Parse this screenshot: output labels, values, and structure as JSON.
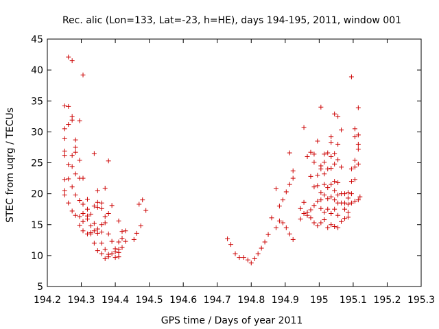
{
  "chart_data": {
    "type": "scatter",
    "title": "Rec. alic (Lon=133, Lat=-23, h=HE), days 194-195, 2011, window 001",
    "xlabel": "GPS time / Days of year 2011",
    "ylabel": "STEC from uqrg / TECUs",
    "xlim": [
      194.2,
      195.3
    ],
    "ylim": [
      5,
      45
    ],
    "grid": false,
    "legend": "none",
    "marker": "+",
    "color": "#cc0000",
    "x_ticks": [
      {
        "value": 194.2,
        "label": "194.2"
      },
      {
        "value": 194.3,
        "label": "194.3"
      },
      {
        "value": 194.4,
        "label": "194.4"
      },
      {
        "value": 194.5,
        "label": "194.5"
      },
      {
        "value": 194.6,
        "label": "194.6"
      },
      {
        "value": 194.7,
        "label": "194.7"
      },
      {
        "value": 194.8,
        "label": "194.8"
      },
      {
        "value": 194.9,
        "label": "194.9"
      },
      {
        "value": 195.0,
        "label": "195"
      },
      {
        "value": 195.1,
        "label": "195.1"
      },
      {
        "value": 195.2,
        "label": "195.2"
      },
      {
        "value": 195.3,
        "label": "195.3"
      }
    ],
    "y_ticks": [
      {
        "value": 5,
        "label": "5"
      },
      {
        "value": 10,
        "label": "10"
      },
      {
        "value": 15,
        "label": "15"
      },
      {
        "value": 20,
        "label": "20"
      },
      {
        "value": 25,
        "label": "25"
      },
      {
        "value": 30,
        "label": "30"
      },
      {
        "value": 35,
        "label": "35"
      },
      {
        "value": 40,
        "label": "40"
      },
      {
        "value": 45,
        "label": "45"
      }
    ],
    "points": [
      [
        194.251,
        34.2
      ],
      [
        194.251,
        30.5
      ],
      [
        194.251,
        28.9
      ],
      [
        194.251,
        26.9
      ],
      [
        194.251,
        26.2
      ],
      [
        194.251,
        22.3
      ],
      [
        194.251,
        20.5
      ],
      [
        194.251,
        19.8
      ],
      [
        194.262,
        42.1
      ],
      [
        194.262,
        34.1
      ],
      [
        194.262,
        31.2
      ],
      [
        194.262,
        24.7
      ],
      [
        194.262,
        22.4
      ],
      [
        194.262,
        18.5
      ],
      [
        194.273,
        41.5
      ],
      [
        194.273,
        32.5
      ],
      [
        194.273,
        31.9
      ],
      [
        194.273,
        26.2
      ],
      [
        194.273,
        24.4
      ],
      [
        194.273,
        21.1
      ],
      [
        194.273,
        17.2
      ],
      [
        194.283,
        28.7
      ],
      [
        194.283,
        27.5
      ],
      [
        194.283,
        26.7
      ],
      [
        194.283,
        23.2
      ],
      [
        194.283,
        19.8
      ],
      [
        194.283,
        16.5
      ],
      [
        194.295,
        31.8
      ],
      [
        194.295,
        25.4
      ],
      [
        194.295,
        22.5
      ],
      [
        194.295,
        18.9
      ],
      [
        194.295,
        16.3
      ],
      [
        194.295,
        14.9
      ],
      [
        194.305,
        39.2
      ],
      [
        194.305,
        22.5
      ],
      [
        194.305,
        18.3
      ],
      [
        194.305,
        16.8
      ],
      [
        194.305,
        15.5
      ],
      [
        194.305,
        14.0
      ],
      [
        194.318,
        19.1
      ],
      [
        194.318,
        17.5
      ],
      [
        194.318,
        16.4
      ],
      [
        194.318,
        15.9
      ],
      [
        194.318,
        13.5
      ],
      [
        194.328,
        16.7
      ],
      [
        194.328,
        14.8
      ],
      [
        194.328,
        13.7
      ],
      [
        194.328,
        13.5
      ],
      [
        194.338,
        26.5
      ],
      [
        194.338,
        18.0
      ],
      [
        194.338,
        15.2
      ],
      [
        194.338,
        14.0
      ],
      [
        194.338,
        12.0
      ],
      [
        194.348,
        20.5
      ],
      [
        194.348,
        18.6
      ],
      [
        194.348,
        17.8
      ],
      [
        194.348,
        14.3
      ],
      [
        194.348,
        13.6
      ],
      [
        194.348,
        10.8
      ],
      [
        194.36,
        18.5
      ],
      [
        194.36,
        17.6
      ],
      [
        194.36,
        15.0
      ],
      [
        194.36,
        13.8
      ],
      [
        194.36,
        12.0
      ],
      [
        194.36,
        10.3
      ],
      [
        194.37,
        20.9
      ],
      [
        194.37,
        16.3
      ],
      [
        194.37,
        15.3
      ],
      [
        194.37,
        11.0
      ],
      [
        194.37,
        9.5
      ],
      [
        194.38,
        25.3
      ],
      [
        194.38,
        16.8
      ],
      [
        194.38,
        13.5
      ],
      [
        194.38,
        10.2
      ],
      [
        194.38,
        9.8
      ],
      [
        194.39,
        18.1
      ],
      [
        194.39,
        12.3
      ],
      [
        194.39,
        10.3
      ],
      [
        194.4,
        11.1
      ],
      [
        194.4,
        10.6
      ],
      [
        194.4,
        9.7
      ],
      [
        194.41,
        15.6
      ],
      [
        194.41,
        12.2
      ],
      [
        194.41,
        11.0
      ],
      [
        194.41,
        10.5
      ],
      [
        194.41,
        9.8
      ],
      [
        194.42,
        13.9
      ],
      [
        194.42,
        12.8
      ],
      [
        194.42,
        11.3
      ],
      [
        194.43,
        14.0
      ],
      [
        194.43,
        12.3
      ],
      [
        194.455,
        12.6
      ],
      [
        194.463,
        13.6
      ],
      [
        194.47,
        18.3
      ],
      [
        194.475,
        14.8
      ],
      [
        194.48,
        19.0
      ],
      [
        194.49,
        17.3
      ],
      [
        194.73,
        12.7
      ],
      [
        194.74,
        11.8
      ],
      [
        194.753,
        10.3
      ],
      [
        194.765,
        9.7
      ],
      [
        194.778,
        9.7
      ],
      [
        194.79,
        9.3
      ],
      [
        194.8,
        8.8
      ],
      [
        194.81,
        9.5
      ],
      [
        194.82,
        10.3
      ],
      [
        194.83,
        11.2
      ],
      [
        194.84,
        12.2
      ],
      [
        194.85,
        13.4
      ],
      [
        194.86,
        16.1
      ],
      [
        194.873,
        14.5
      ],
      [
        194.873,
        20.8
      ],
      [
        194.883,
        15.6
      ],
      [
        194.883,
        18.0
      ],
      [
        194.893,
        15.3
      ],
      [
        194.893,
        19.0
      ],
      [
        194.903,
        14.5
      ],
      [
        194.903,
        20.3
      ],
      [
        194.913,
        13.5
      ],
      [
        194.913,
        21.5
      ],
      [
        194.913,
        26.6
      ],
      [
        194.923,
        12.6
      ],
      [
        194.923,
        22.5
      ],
      [
        194.923,
        23.7
      ],
      [
        194.945,
        15.9
      ],
      [
        194.945,
        17.6
      ],
      [
        194.955,
        16.8
      ],
      [
        194.955,
        18.6
      ],
      [
        194.955,
        30.7
      ],
      [
        194.965,
        16.5
      ],
      [
        194.965,
        17.0
      ],
      [
        194.965,
        26.0
      ],
      [
        194.975,
        16.1
      ],
      [
        194.975,
        17.4
      ],
      [
        194.975,
        22.8
      ],
      [
        194.975,
        26.7
      ],
      [
        194.985,
        15.3
      ],
      [
        194.985,
        18.1
      ],
      [
        194.985,
        21.1
      ],
      [
        194.985,
        25.1
      ],
      [
        194.985,
        26.4
      ],
      [
        194.995,
        14.8
      ],
      [
        194.995,
        18.8
      ],
      [
        194.995,
        21.3
      ],
      [
        194.995,
        23.0
      ],
      [
        194.995,
        28.5
      ],
      [
        195.005,
        15.3
      ],
      [
        195.005,
        17.6
      ],
      [
        195.005,
        19.0
      ],
      [
        195.005,
        20.2
      ],
      [
        195.005,
        24.0
      ],
      [
        195.005,
        24.5
      ],
      [
        195.005,
        34.0
      ],
      [
        195.015,
        15.8
      ],
      [
        195.015,
        17.0
      ],
      [
        195.015,
        19.8
      ],
      [
        195.015,
        21.5
      ],
      [
        195.015,
        23.2
      ],
      [
        195.015,
        25.1
      ],
      [
        195.015,
        26.4
      ],
      [
        195.025,
        14.5
      ],
      [
        195.025,
        17.5
      ],
      [
        195.025,
        19.2
      ],
      [
        195.025,
        21.0
      ],
      [
        195.025,
        24.0
      ],
      [
        195.025,
        26.6
      ],
      [
        195.035,
        15.0
      ],
      [
        195.035,
        16.8
      ],
      [
        195.035,
        19.5
      ],
      [
        195.035,
        21.5
      ],
      [
        195.035,
        24.1
      ],
      [
        195.035,
        26.0
      ],
      [
        195.035,
        28.3
      ],
      [
        195.035,
        29.2
      ],
      [
        195.045,
        14.7
      ],
      [
        195.045,
        17.5
      ],
      [
        195.045,
        19.0
      ],
      [
        195.045,
        20.5
      ],
      [
        195.045,
        22.0
      ],
      [
        195.045,
        24.8
      ],
      [
        195.045,
        26.5
      ],
      [
        195.045,
        32.9
      ],
      [
        195.055,
        14.5
      ],
      [
        195.055,
        16.5
      ],
      [
        195.055,
        18.5
      ],
      [
        195.055,
        19.8
      ],
      [
        195.055,
        21.8
      ],
      [
        195.055,
        25.5
      ],
      [
        195.055,
        28.0
      ],
      [
        195.055,
        32.5
      ],
      [
        195.065,
        15.5
      ],
      [
        195.065,
        18.5
      ],
      [
        195.065,
        20.0
      ],
      [
        195.065,
        24.3
      ],
      [
        195.065,
        30.3
      ],
      [
        195.075,
        16.0
      ],
      [
        195.075,
        17.5
      ],
      [
        195.075,
        18.5
      ],
      [
        195.075,
        20.0
      ],
      [
        195.085,
        16.2
      ],
      [
        195.085,
        17.0
      ],
      [
        195.085,
        18.3
      ],
      [
        195.085,
        19.3
      ],
      [
        195.085,
        20.2
      ],
      [
        195.095,
        18.5
      ],
      [
        195.095,
        20.0
      ],
      [
        195.095,
        22.0
      ],
      [
        195.095,
        24.0
      ],
      [
        195.095,
        38.9
      ],
      [
        195.105,
        18.8
      ],
      [
        195.105,
        22.3
      ],
      [
        195.105,
        24.3
      ],
      [
        195.105,
        25.4
      ],
      [
        195.105,
        29.2
      ],
      [
        195.105,
        30.5
      ],
      [
        195.115,
        19.0
      ],
      [
        195.115,
        24.8
      ],
      [
        195.115,
        27.2
      ],
      [
        195.115,
        28.0
      ],
      [
        195.115,
        29.5
      ],
      [
        195.115,
        33.9
      ],
      [
        195.12,
        19.5
      ]
    ]
  }
}
